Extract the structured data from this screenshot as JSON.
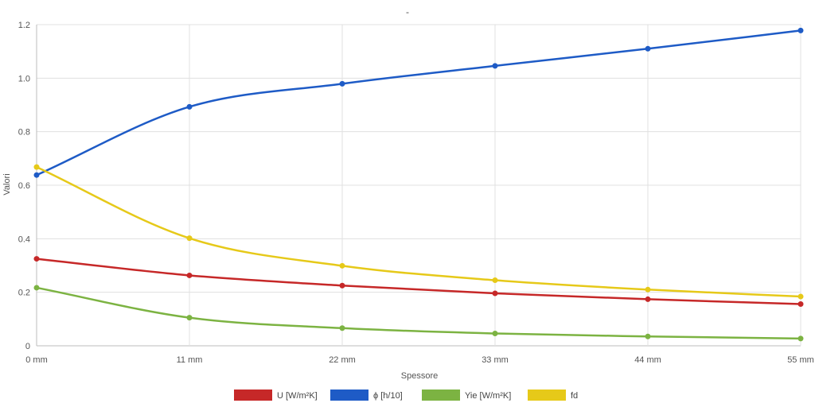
{
  "chart_data": {
    "type": "line",
    "title": "-",
    "xlabel": "Spessore",
    "ylabel": "Valori",
    "categories": [
      "0 mm",
      "11 mm",
      "22 mm",
      "33 mm",
      "44 mm",
      "55 mm"
    ],
    "ylim": [
      0,
      1.2
    ],
    "yticks": [
      "0",
      "0.2",
      "0.4",
      "0.6",
      "0.8",
      "1.0",
      "1.2"
    ],
    "grid": true,
    "legend_position": "bottom",
    "series": [
      {
        "name": "U [W/m²K]",
        "color": "#c62828",
        "values": [
          0.325,
          0.263,
          0.225,
          0.196,
          0.174,
          0.156
        ]
      },
      {
        "name": "ϕ [h/10]",
        "color": "#1e5bc6",
        "values": [
          0.638,
          0.893,
          0.979,
          1.046,
          1.11,
          1.178
        ]
      },
      {
        "name": "Yie [W/m²K]",
        "color": "#7cb342",
        "values": [
          0.217,
          0.105,
          0.066,
          0.046,
          0.035,
          0.027
        ]
      },
      {
        "name": "fd",
        "color": "#e6c919",
        "values": [
          0.668,
          0.402,
          0.299,
          0.245,
          0.21,
          0.184
        ]
      }
    ]
  }
}
